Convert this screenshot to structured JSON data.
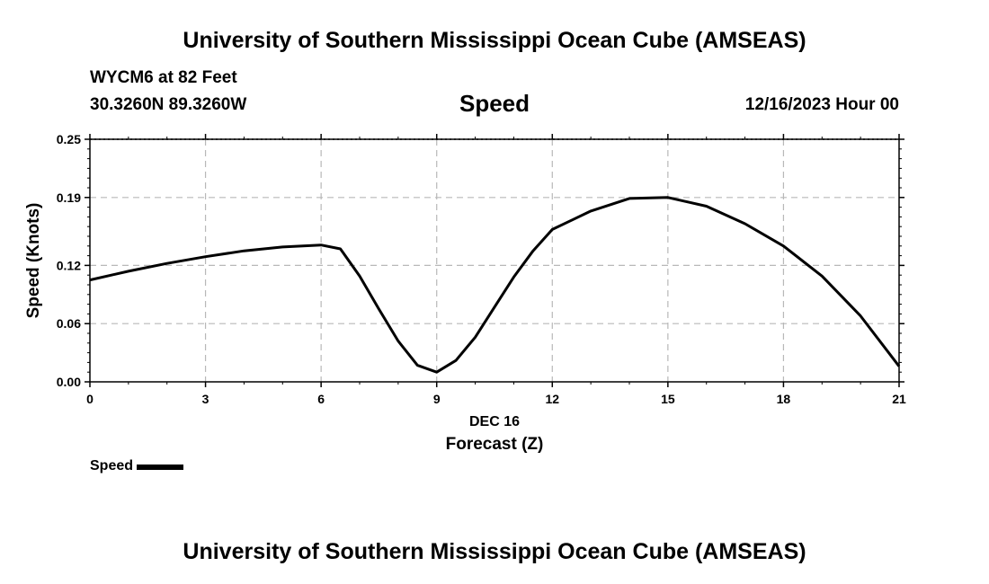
{
  "header": {
    "title": "University of Southern Mississippi Ocean Cube (AMSEAS)",
    "station": "WYCM6 at 82 Feet",
    "coords": "30.3260N  89.3260W",
    "datetime": "12/16/2023 Hour 00"
  },
  "footer": {
    "title": "University of Southern Mississippi Ocean Cube (AMSEAS)"
  },
  "chart_data": {
    "type": "line",
    "title": "Speed",
    "xlabel": "Forecast (Z)",
    "xlabel_date": "DEC 16",
    "ylabel": "Speed (Knots)",
    "xlim": [
      0,
      21
    ],
    "ylim": [
      0,
      0.25
    ],
    "xticks": [
      0,
      3,
      6,
      9,
      12,
      15,
      18,
      21
    ],
    "yticks": [
      0.0,
      0.06,
      0.12,
      0.19,
      0.25
    ],
    "ytick_labels": [
      "0.00",
      "0.06",
      "0.12",
      "0.19",
      "0.25"
    ],
    "grid": true,
    "legend": "bottom-left",
    "line_color": "#000000",
    "series": [
      {
        "name": "Speed",
        "x": [
          0,
          1,
          2,
          3,
          4,
          5,
          6,
          6.5,
          7,
          7.5,
          8,
          8.5,
          9,
          9.5,
          10,
          10.5,
          11,
          11.5,
          12,
          13,
          14,
          15,
          16,
          17,
          18,
          19,
          20,
          21
        ],
        "values": [
          0.105,
          0.114,
          0.122,
          0.129,
          0.135,
          0.139,
          0.141,
          0.137,
          0.109,
          0.075,
          0.042,
          0.017,
          0.01,
          0.022,
          0.046,
          0.077,
          0.108,
          0.135,
          0.157,
          0.176,
          0.189,
          0.19,
          0.181,
          0.163,
          0.14,
          0.109,
          0.068,
          0.016
        ]
      }
    ]
  }
}
